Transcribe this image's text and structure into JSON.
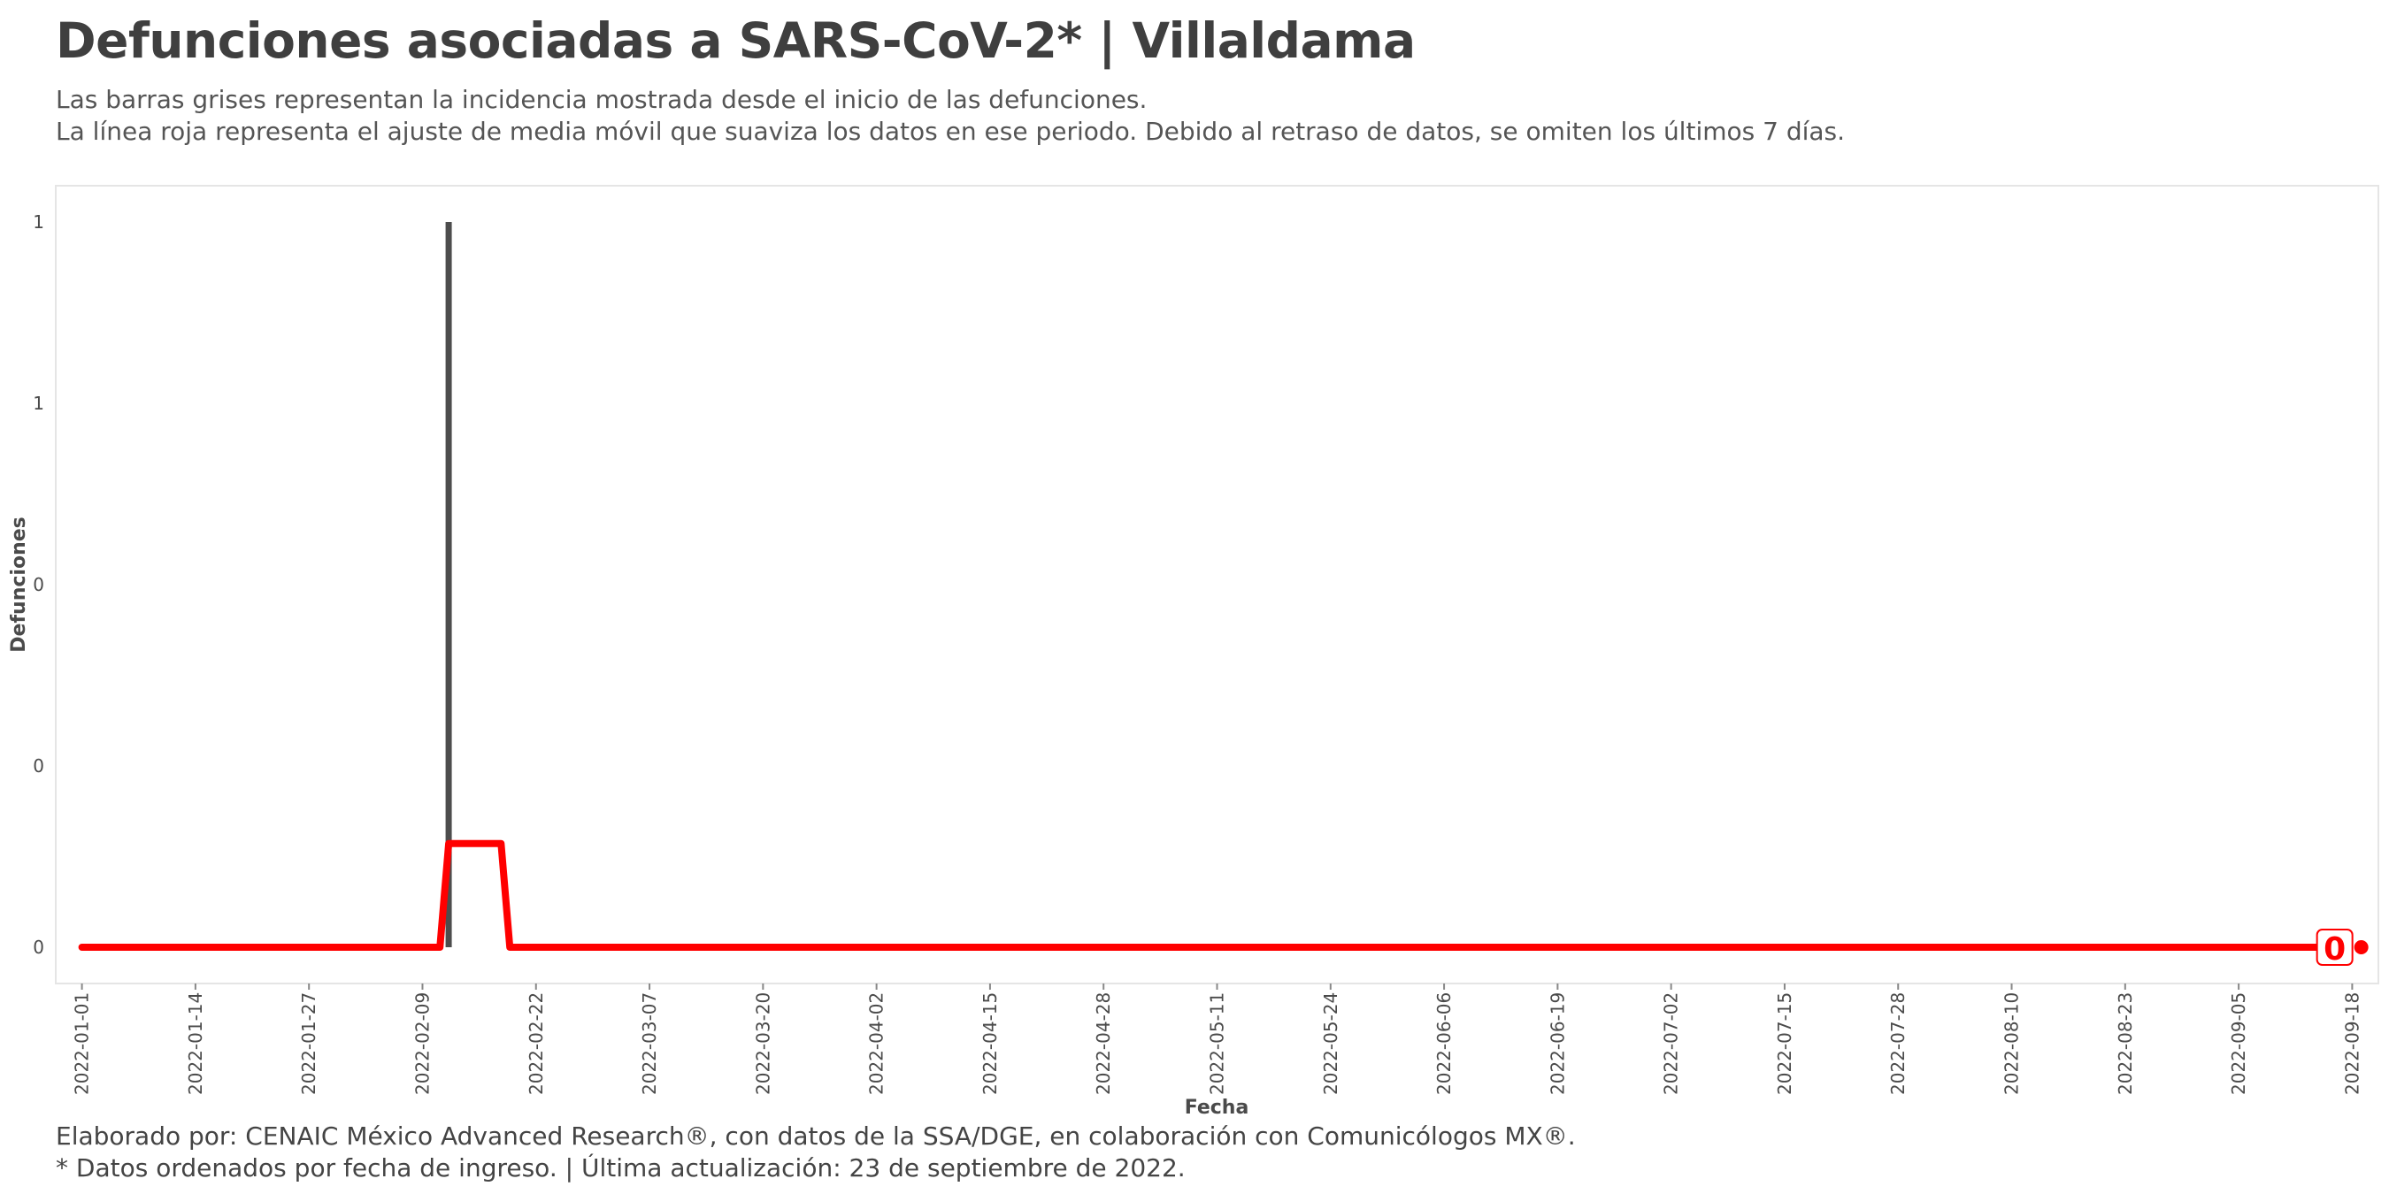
{
  "title": "Defunciones asociadas a SARS-CoV-2* | Villaldama",
  "subtitle_lines": [
    "Las barras grises representan la incidencia mostrada desde el inicio de las defunciones.",
    "La línea roja representa el ajuste de media móvil que suaviza los datos en ese periodo. Debido al retraso de datos, se omiten los últimos 7 días."
  ],
  "caption_lines": [
    "Elaborado por: CENAIC México Advanced Research®, con datos de la SSA/DGE, en colaboración con Comunicólogos MX®.",
    "* Datos ordenados por fecha de ingreso. | Última actualización: 23 de septiembre de 2022."
  ],
  "colors": {
    "bars": "#4d4d4d",
    "line": "#ff0000",
    "panel_border": "#e5e5e5",
    "text": "#4a4a4a"
  },
  "chart_data": {
    "type": "bar",
    "xlabel": "Fecha",
    "ylabel": "Defunciones",
    "x_range": [
      "2021-12-29",
      "2022-09-21"
    ],
    "ylim": [
      -0.05,
      1.05
    ],
    "y_ticks": [
      {
        "value": 0.0,
        "label": "0"
      },
      {
        "value": 0.25,
        "label": "0"
      },
      {
        "value": 0.5,
        "label": "0"
      },
      {
        "value": 0.75,
        "label": "1"
      },
      {
        "value": 1.0,
        "label": "1"
      }
    ],
    "x_ticks": [
      "2022-01-01",
      "2022-01-14",
      "2022-01-27",
      "2022-02-09",
      "2022-02-22",
      "2022-03-07",
      "2022-03-20",
      "2022-04-02",
      "2022-04-15",
      "2022-04-28",
      "2022-05-11",
      "2022-05-24",
      "2022-06-06",
      "2022-06-19",
      "2022-07-02",
      "2022-07-15",
      "2022-07-28",
      "2022-08-10",
      "2022-08-23",
      "2022-09-05",
      "2022-09-18"
    ],
    "bars": [
      {
        "date": "2022-02-12",
        "value": 1
      }
    ],
    "moving_average": {
      "name": "media móvil",
      "points": [
        {
          "date": "2022-01-01",
          "value": 0
        },
        {
          "date": "2022-02-11",
          "value": 0
        },
        {
          "date": "2022-02-12",
          "value": 0.143
        },
        {
          "date": "2022-02-18",
          "value": 0.143
        },
        {
          "date": "2022-02-19",
          "value": 0
        },
        {
          "date": "2022-09-16",
          "value": 0
        }
      ]
    },
    "end_point": {
      "date": "2022-09-16",
      "value": 0
    },
    "end_label": "0",
    "grid": false,
    "legend": "none"
  }
}
